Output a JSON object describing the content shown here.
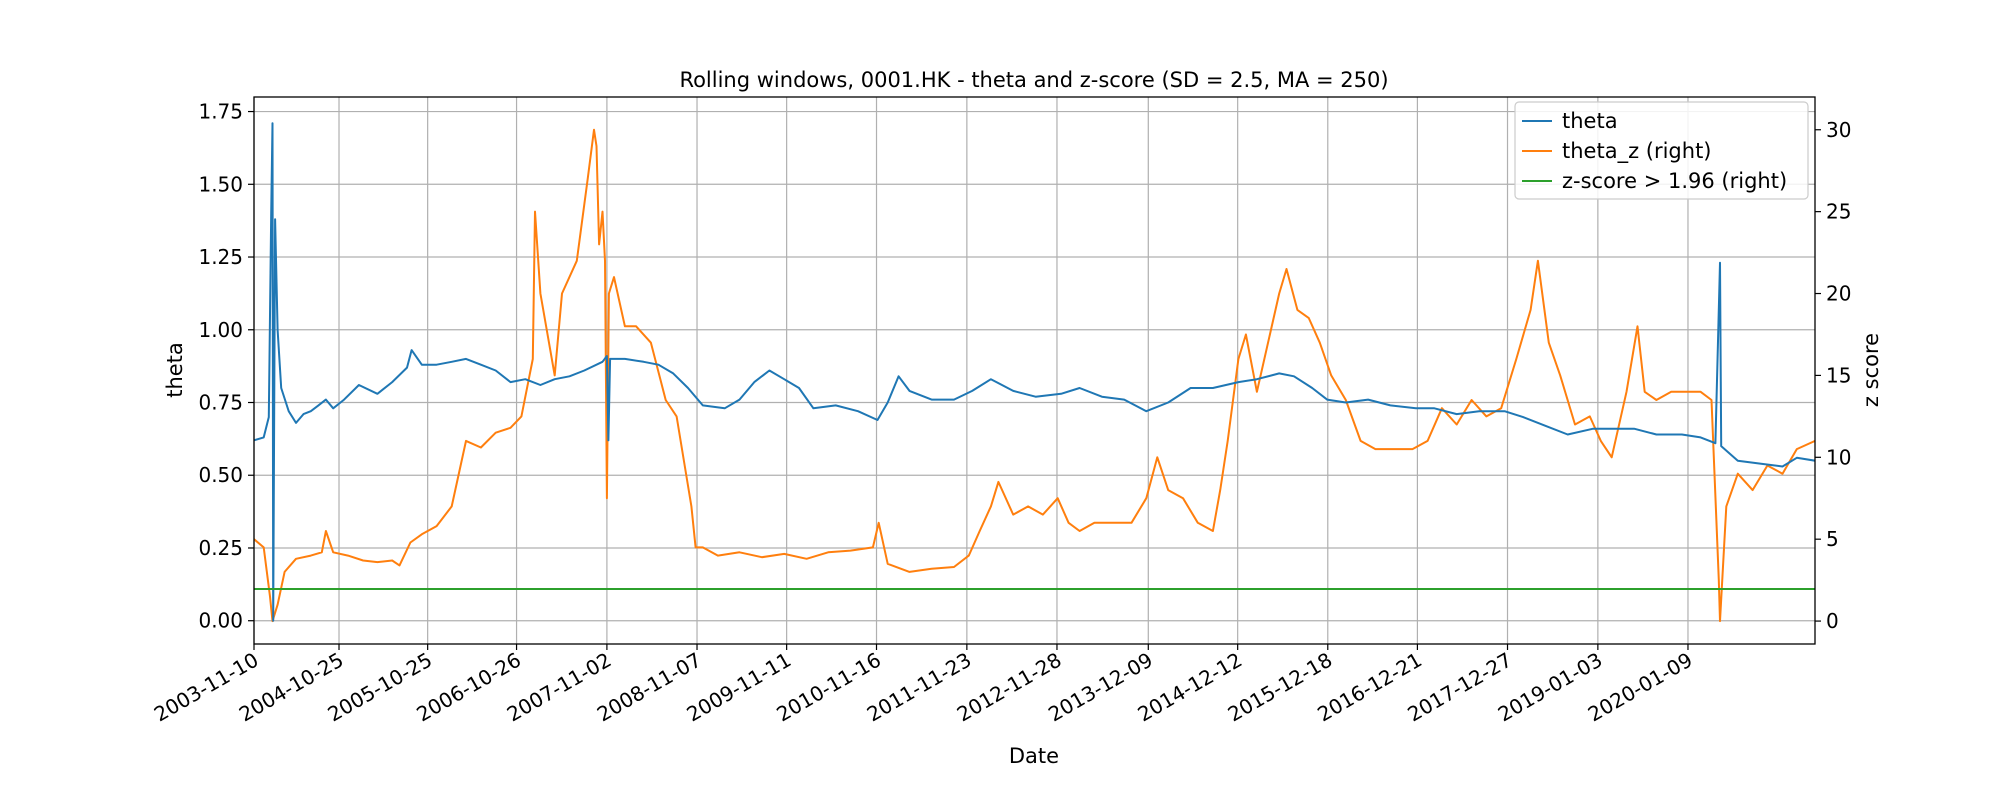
{
  "chart_data": {
    "type": "line",
    "title": "Rolling windows, 0001.HK - theta and z-score (SD = 2.5, MA = 250)",
    "xlabel": "Date",
    "ylabel": "theta",
    "ylabel_right": "z score",
    "x_tick_labels": [
      "2003-11-10",
      "2004-10-25",
      "2005-10-25",
      "2006-10-26",
      "2007-11-02",
      "2008-11-07",
      "2009-11-11",
      "2010-11-16",
      "2011-11-23",
      "2012-11-28",
      "2013-12-09",
      "2014-12-12",
      "2015-12-18",
      "2016-12-21",
      "2017-12-27",
      "2019-01-03",
      "2020-01-09"
    ],
    "ylim_left": [
      -0.08,
      1.8
    ],
    "ylim_right": [
      -1.4,
      32
    ],
    "yticks_left": [
      "0.00",
      "0.25",
      "0.50",
      "0.75",
      "1.00",
      "1.25",
      "1.50",
      "1.75"
    ],
    "yticks_right": [
      "0",
      "5",
      "10",
      "15",
      "20",
      "25",
      "30"
    ],
    "grid": true,
    "legend_position": "top-right",
    "series": [
      {
        "name": "theta",
        "axis": "left",
        "color": "#1f77b4",
        "points": [
          [
            "2003-11-10",
            0.62
          ],
          [
            "2003-12-20",
            0.63
          ],
          [
            "2004-01-10",
            0.7
          ],
          [
            "2004-01-20",
            1.4
          ],
          [
            "2004-01-25",
            1.71
          ],
          [
            "2004-01-28",
            0.0
          ],
          [
            "2004-02-05",
            1.38
          ],
          [
            "2004-02-15",
            1.0
          ],
          [
            "2004-03-01",
            0.8
          ],
          [
            "2004-04-01",
            0.72
          ],
          [
            "2004-05-01",
            0.68
          ],
          [
            "2004-06-01",
            0.71
          ],
          [
            "2004-07-01",
            0.72
          ],
          [
            "2004-08-01",
            0.74
          ],
          [
            "2004-09-01",
            0.76
          ],
          [
            "2004-10-01",
            0.73
          ],
          [
            "2004-11-15",
            0.76
          ],
          [
            "2005-01-15",
            0.81
          ],
          [
            "2005-04-01",
            0.78
          ],
          [
            "2005-06-01",
            0.82
          ],
          [
            "2005-08-01",
            0.87
          ],
          [
            "2005-08-20",
            0.93
          ],
          [
            "2005-10-01",
            0.88
          ],
          [
            "2005-12-01",
            0.88
          ],
          [
            "2006-02-01",
            0.89
          ],
          [
            "2006-04-01",
            0.9
          ],
          [
            "2006-06-01",
            0.88
          ],
          [
            "2006-08-01",
            0.86
          ],
          [
            "2006-10-01",
            0.82
          ],
          [
            "2006-12-01",
            0.83
          ],
          [
            "2007-02-01",
            0.81
          ],
          [
            "2007-04-01",
            0.83
          ],
          [
            "2007-06-01",
            0.84
          ],
          [
            "2007-08-01",
            0.86
          ],
          [
            "2007-10-15",
            0.89
          ],
          [
            "2007-11-02",
            0.91
          ],
          [
            "2007-11-08",
            0.62
          ],
          [
            "2007-11-15",
            0.9
          ],
          [
            "2008-01-15",
            0.9
          ],
          [
            "2008-04-01",
            0.89
          ],
          [
            "2008-06-01",
            0.88
          ],
          [
            "2008-08-01",
            0.85
          ],
          [
            "2008-10-01",
            0.8
          ],
          [
            "2008-12-01",
            0.74
          ],
          [
            "2009-03-01",
            0.73
          ],
          [
            "2009-05-01",
            0.76
          ],
          [
            "2009-07-01",
            0.82
          ],
          [
            "2009-09-01",
            0.86
          ],
          [
            "2009-11-01",
            0.83
          ],
          [
            "2010-01-01",
            0.8
          ],
          [
            "2010-03-01",
            0.73
          ],
          [
            "2010-06-01",
            0.74
          ],
          [
            "2010-09-01",
            0.72
          ],
          [
            "2010-11-20",
            0.69
          ],
          [
            "2011-01-01",
            0.75
          ],
          [
            "2011-02-15",
            0.84
          ],
          [
            "2011-04-01",
            0.79
          ],
          [
            "2011-07-01",
            0.76
          ],
          [
            "2011-10-01",
            0.76
          ],
          [
            "2011-12-15",
            0.79
          ],
          [
            "2012-03-01",
            0.83
          ],
          [
            "2012-06-01",
            0.79
          ],
          [
            "2012-09-01",
            0.77
          ],
          [
            "2012-12-15",
            0.78
          ],
          [
            "2013-03-01",
            0.8
          ],
          [
            "2013-06-01",
            0.77
          ],
          [
            "2013-09-01",
            0.76
          ],
          [
            "2013-12-01",
            0.72
          ],
          [
            "2014-03-01",
            0.75
          ],
          [
            "2014-06-01",
            0.8
          ],
          [
            "2014-09-01",
            0.8
          ],
          [
            "2014-12-15",
            0.82
          ],
          [
            "2015-03-01",
            0.83
          ],
          [
            "2015-06-01",
            0.85
          ],
          [
            "2015-08-01",
            0.84
          ],
          [
            "2015-10-15",
            0.8
          ],
          [
            "2015-12-15",
            0.76
          ],
          [
            "2016-03-01",
            0.75
          ],
          [
            "2016-06-01",
            0.76
          ],
          [
            "2016-09-01",
            0.74
          ],
          [
            "2016-12-15",
            0.73
          ],
          [
            "2017-03-01",
            0.73
          ],
          [
            "2017-06-01",
            0.71
          ],
          [
            "2017-09-01",
            0.72
          ],
          [
            "2017-12-15",
            0.72
          ],
          [
            "2018-03-01",
            0.7
          ],
          [
            "2018-06-01",
            0.67
          ],
          [
            "2018-09-01",
            0.64
          ],
          [
            "2018-12-15",
            0.66
          ],
          [
            "2019-03-01",
            0.66
          ],
          [
            "2019-06-01",
            0.66
          ],
          [
            "2019-09-01",
            0.64
          ],
          [
            "2019-12-15",
            0.64
          ],
          [
            "2020-03-01",
            0.63
          ],
          [
            "2020-05-01",
            0.61
          ],
          [
            "2020-05-20",
            1.23
          ],
          [
            "2020-05-25",
            0.6
          ],
          [
            "2020-08-01",
            0.55
          ],
          [
            "2020-11-01",
            0.54
          ],
          [
            "2021-02-01",
            0.53
          ],
          [
            "2021-04-01",
            0.56
          ],
          [
            "2021-06-15",
            0.55
          ]
        ]
      },
      {
        "name": "theta_z (right)",
        "axis": "right",
        "color": "#ff7f0e",
        "points": [
          [
            "2003-11-10",
            5.0
          ],
          [
            "2003-12-20",
            4.5
          ],
          [
            "2004-01-15",
            1.5
          ],
          [
            "2004-01-25",
            0.0
          ],
          [
            "2004-02-15",
            1.0
          ],
          [
            "2004-03-15",
            3.0
          ],
          [
            "2004-05-01",
            3.8
          ],
          [
            "2004-07-01",
            4.0
          ],
          [
            "2004-08-15",
            4.2
          ],
          [
            "2004-09-01",
            5.5
          ],
          [
            "2004-10-01",
            4.2
          ],
          [
            "2004-12-01",
            4.0
          ],
          [
            "2005-02-01",
            3.7
          ],
          [
            "2005-04-01",
            3.6
          ],
          [
            "2005-06-01",
            3.7
          ],
          [
            "2005-07-01",
            3.4
          ],
          [
            "2005-08-15",
            4.8
          ],
          [
            "2005-10-01",
            5.3
          ],
          [
            "2005-12-01",
            5.8
          ],
          [
            "2006-02-01",
            7.0
          ],
          [
            "2006-04-01",
            11.0
          ],
          [
            "2006-06-01",
            10.6
          ],
          [
            "2006-08-01",
            11.5
          ],
          [
            "2006-10-01",
            11.8
          ],
          [
            "2006-11-15",
            12.5
          ],
          [
            "2007-01-01",
            16.0
          ],
          [
            "2007-01-10",
            25.0
          ],
          [
            "2007-02-01",
            20.0
          ],
          [
            "2007-04-01",
            15.0
          ],
          [
            "2007-05-01",
            20.0
          ],
          [
            "2007-07-01",
            22.0
          ],
          [
            "2007-08-15",
            27.0
          ],
          [
            "2007-09-10",
            30.0
          ],
          [
            "2007-09-20",
            29.0
          ],
          [
            "2007-10-01",
            23.0
          ],
          [
            "2007-10-15",
            25.0
          ],
          [
            "2007-10-25",
            22.0
          ],
          [
            "2007-11-02",
            7.5
          ],
          [
            "2007-11-10",
            20.0
          ],
          [
            "2007-12-01",
            21.0
          ],
          [
            "2008-01-15",
            18.0
          ],
          [
            "2008-03-01",
            18.0
          ],
          [
            "2008-05-01",
            17.0
          ],
          [
            "2008-07-01",
            13.5
          ],
          [
            "2008-08-15",
            12.5
          ],
          [
            "2008-10-15",
            7.0
          ],
          [
            "2008-11-01",
            4.5
          ],
          [
            "2008-12-01",
            4.5
          ],
          [
            "2009-02-01",
            4.0
          ],
          [
            "2009-05-01",
            4.2
          ],
          [
            "2009-08-01",
            3.9
          ],
          [
            "2009-11-01",
            4.1
          ],
          [
            "2010-02-01",
            3.8
          ],
          [
            "2010-05-01",
            4.2
          ],
          [
            "2010-08-01",
            4.3
          ],
          [
            "2010-11-01",
            4.5
          ],
          [
            "2010-11-25",
            6.0
          ],
          [
            "2011-01-01",
            3.5
          ],
          [
            "2011-04-01",
            3.0
          ],
          [
            "2011-07-01",
            3.2
          ],
          [
            "2011-10-01",
            3.3
          ],
          [
            "2011-12-01",
            4.0
          ],
          [
            "2012-01-15",
            5.5
          ],
          [
            "2012-03-01",
            7.0
          ],
          [
            "2012-04-01",
            8.5
          ],
          [
            "2012-06-01",
            6.5
          ],
          [
            "2012-08-01",
            7.0
          ],
          [
            "2012-10-01",
            6.5
          ],
          [
            "2012-12-01",
            7.5
          ],
          [
            "2013-01-15",
            6.0
          ],
          [
            "2013-03-01",
            5.5
          ],
          [
            "2013-05-01",
            6.0
          ],
          [
            "2013-08-01",
            6.0
          ],
          [
            "2013-10-01",
            6.0
          ],
          [
            "2013-12-01",
            7.5
          ],
          [
            "2014-01-15",
            10.0
          ],
          [
            "2014-03-01",
            8.0
          ],
          [
            "2014-05-01",
            7.5
          ],
          [
            "2014-07-01",
            6.0
          ],
          [
            "2014-09-01",
            5.5
          ],
          [
            "2014-10-01",
            8.0
          ],
          [
            "2014-11-01",
            11.0
          ],
          [
            "2014-12-15",
            16.0
          ],
          [
            "2015-01-15",
            17.5
          ],
          [
            "2015-03-01",
            14.0
          ],
          [
            "2015-06-01",
            20.0
          ],
          [
            "2015-07-01",
            21.5
          ],
          [
            "2015-08-15",
            19.0
          ],
          [
            "2015-10-01",
            18.5
          ],
          [
            "2015-11-15",
            17.0
          ],
          [
            "2016-01-01",
            15.0
          ],
          [
            "2016-03-01",
            13.5
          ],
          [
            "2016-05-01",
            11.0
          ],
          [
            "2016-07-01",
            10.5
          ],
          [
            "2016-10-01",
            10.5
          ],
          [
            "2016-12-01",
            10.5
          ],
          [
            "2017-02-01",
            11.0
          ],
          [
            "2017-04-01",
            13.0
          ],
          [
            "2017-06-01",
            12.0
          ],
          [
            "2017-08-01",
            13.5
          ],
          [
            "2017-10-01",
            12.5
          ],
          [
            "2017-12-01",
            13.0
          ],
          [
            "2018-02-01",
            16.0
          ],
          [
            "2018-04-01",
            19.0
          ],
          [
            "2018-05-01",
            22.0
          ],
          [
            "2018-06-15",
            17.0
          ],
          [
            "2018-08-01",
            15.0
          ],
          [
            "2018-10-01",
            12.0
          ],
          [
            "2018-12-01",
            12.5
          ],
          [
            "2019-01-15",
            11.0
          ],
          [
            "2019-03-01",
            10.0
          ],
          [
            "2019-05-01",
            14.0
          ],
          [
            "2019-06-15",
            18.0
          ],
          [
            "2019-07-15",
            14.0
          ],
          [
            "2019-09-01",
            13.5
          ],
          [
            "2019-11-01",
            14.0
          ],
          [
            "2020-01-01",
            14.0
          ],
          [
            "2020-03-01",
            14.0
          ],
          [
            "2020-04-15",
            13.5
          ],
          [
            "2020-05-15",
            2.5
          ],
          [
            "2020-05-20",
            0.0
          ],
          [
            "2020-06-15",
            7.0
          ],
          [
            "2020-08-01",
            9.0
          ],
          [
            "2020-10-01",
            8.0
          ],
          [
            "2020-12-01",
            9.5
          ],
          [
            "2021-02-01",
            9.0
          ],
          [
            "2021-04-01",
            10.5
          ],
          [
            "2021-06-15",
            11.0
          ]
        ]
      },
      {
        "name": "z-score > 1.96 (right)",
        "axis": "right",
        "color": "#2ca02c",
        "points": [
          [
            "2003-11-10",
            1.96
          ],
          [
            "2021-06-15",
            1.96
          ]
        ]
      }
    ]
  }
}
